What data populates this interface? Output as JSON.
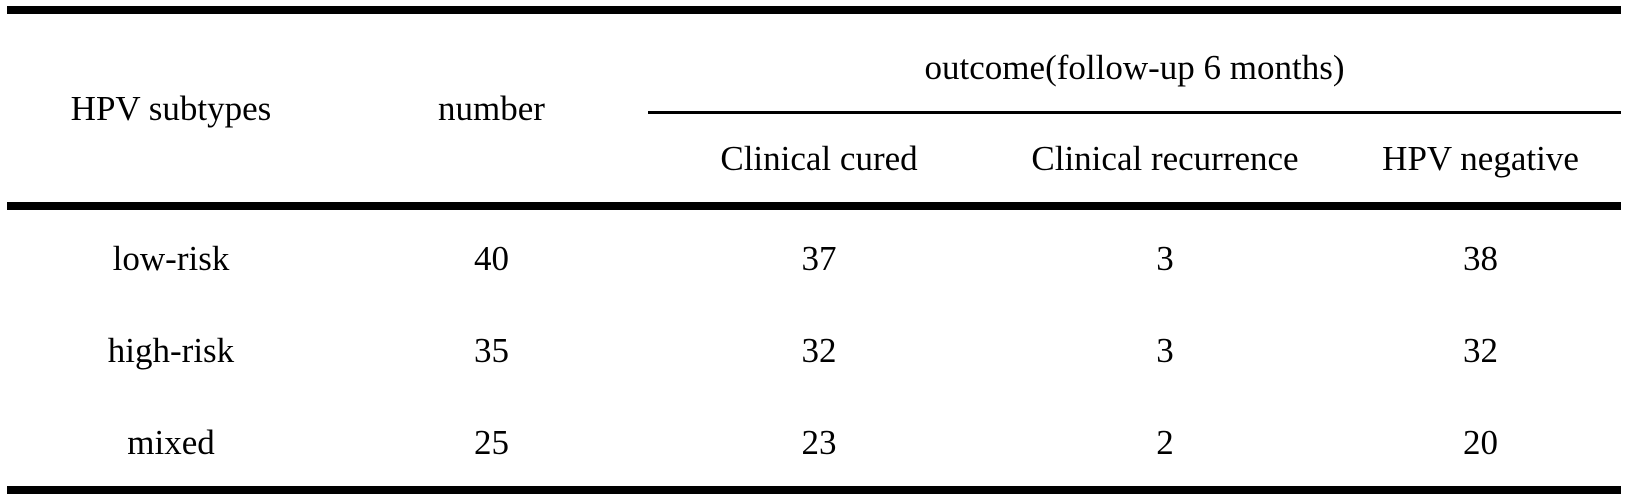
{
  "table": {
    "header": {
      "col_hpv_subtypes": "HPV subtypes",
      "col_number": "number",
      "outcome_group": "outcome(follow-up 6 months)",
      "sub_clinical_cured": "Clinical cured",
      "sub_clinical_recurrence": "Clinical recurrence",
      "sub_hpv_negative": "HPV negative"
    },
    "rows": [
      {
        "subtype": "low-risk",
        "number": "40",
        "clinical_cured": "37",
        "clinical_recurrence": "3",
        "hpv_negative": "38"
      },
      {
        "subtype": "high-risk",
        "number": "35",
        "clinical_cured": "32",
        "clinical_recurrence": "3",
        "hpv_negative": "32"
      },
      {
        "subtype": "mixed",
        "number": "25",
        "clinical_cured": "23",
        "clinical_recurrence": "2",
        "hpv_negative": "20"
      }
    ],
    "colors": {
      "text": "#000000",
      "rule": "#000000",
      "background": "#ffffff"
    }
  }
}
